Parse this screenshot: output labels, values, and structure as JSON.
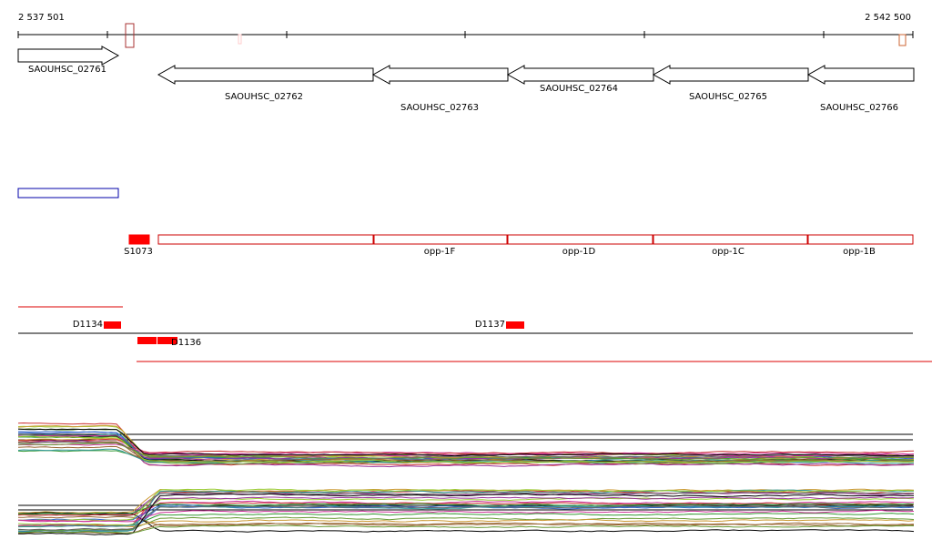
{
  "ruler": {
    "start": "2 537 501",
    "end": "2 542 500"
  },
  "genes": [
    {
      "label": "SAOUHSC_02761"
    },
    {
      "label": "SAOUHSC_02762"
    },
    {
      "label": "SAOUHSC_02763"
    },
    {
      "label": "SAOUHSC_02764"
    },
    {
      "label": "SAOUHSC_02765"
    },
    {
      "label": "SAOUHSC_02766"
    }
  ],
  "features": [
    {
      "label": "S1073"
    },
    {
      "label": "opp-1F"
    },
    {
      "label": "opp-1D"
    },
    {
      "label": "opp-1C"
    },
    {
      "label": "opp-1B"
    }
  ],
  "segments": [
    {
      "label": "D1134"
    },
    {
      "label": "D1137"
    },
    {
      "label": "D1136"
    }
  ]
}
